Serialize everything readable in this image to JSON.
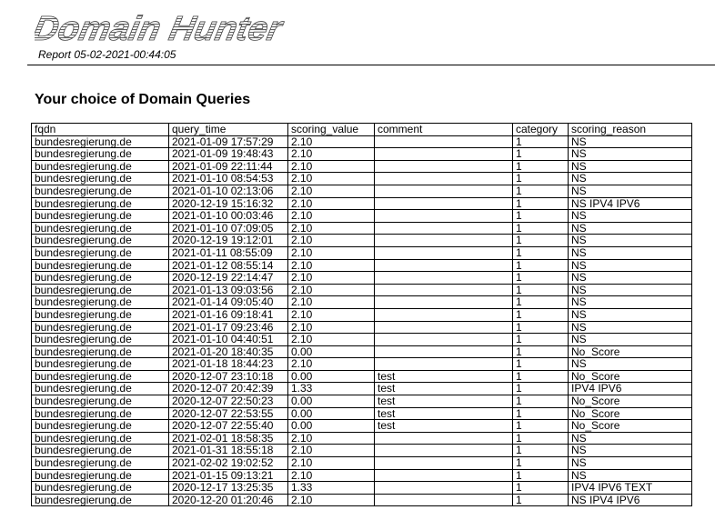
{
  "header": {
    "logo_text": "Domain Hunter",
    "report_label": "Report 05-02-2021-00:44:05"
  },
  "section": {
    "title": "Your choice of Domain Queries"
  },
  "table": {
    "columns": [
      "fqdn",
      "query_time",
      "scoring_value",
      "comment",
      "category",
      "scoring_reason"
    ],
    "rows": [
      [
        "bundesregierung.de",
        "2021-01-09 17:57:29",
        "2.10",
        "",
        "1",
        "NS"
      ],
      [
        "bundesregierung.de",
        "2021-01-09 19:48:43",
        "2.10",
        "",
        "1",
        "NS"
      ],
      [
        "bundesregierung.de",
        "2021-01-09 22:11:44",
        "2.10",
        "",
        "1",
        "NS"
      ],
      [
        "bundesregierung.de",
        "2021-01-10 08:54:53",
        "2.10",
        "",
        "1",
        "NS"
      ],
      [
        "bundesregierung.de",
        "2021-01-10 02:13:06",
        "2.10",
        "",
        "1",
        "NS"
      ],
      [
        "bundesregierung.de",
        "2020-12-19 15:16:32",
        "2.10",
        "",
        "1",
        "NS IPV4 IPV6"
      ],
      [
        "bundesregierung.de",
        "2021-01-10 00:03:46",
        "2.10",
        "",
        "1",
        "NS"
      ],
      [
        "bundesregierung.de",
        "2021-01-10 07:09:05",
        "2.10",
        "",
        "1",
        "NS"
      ],
      [
        "bundesregierung.de",
        "2020-12-19 19:12:01",
        "2.10",
        "",
        "1",
        "NS"
      ],
      [
        "bundesregierung.de",
        "2021-01-11 08:55:09",
        "2.10",
        "",
        "1",
        "NS"
      ],
      [
        "bundesregierung.de",
        "2021-01-12 08:55:14",
        "2.10",
        "",
        "1",
        "NS"
      ],
      [
        "bundesregierung.de",
        "2020-12-19 22:14:47",
        "2.10",
        "",
        "1",
        "NS"
      ],
      [
        "bundesregierung.de",
        "2021-01-13 09:03:56",
        "2.10",
        "",
        "1",
        "NS"
      ],
      [
        "bundesregierung.de",
        "2021-01-14 09:05:40",
        "2.10",
        "",
        "1",
        "NS"
      ],
      [
        "bundesregierung.de",
        "2021-01-16 09:18:41",
        "2.10",
        "",
        "1",
        "NS"
      ],
      [
        "bundesregierung.de",
        "2021-01-17 09:23:46",
        "2.10",
        "",
        "1",
        "NS"
      ],
      [
        "bundesregierung.de",
        "2021-01-10 04:40:51",
        "2.10",
        "",
        "1",
        "NS"
      ],
      [
        "bundesregierung.de",
        "2021-01-20 18:40:35",
        "0.00",
        "",
        "1",
        "No_Score"
      ],
      [
        "bundesregierung.de",
        "2021-01-18 18:44:23",
        "2.10",
        "",
        "1",
        "NS"
      ],
      [
        "bundesregierung.de",
        "2020-12-07 23:10:18",
        "0.00",
        "test",
        "1",
        "No_Score"
      ],
      [
        "bundesregierung.de",
        "2020-12-07 20:42:39",
        "1.33",
        "test",
        "1",
        "IPV4 IPV6"
      ],
      [
        "bundesregierung.de",
        "2020-12-07 22:50:23",
        "0.00",
        "test",
        "1",
        "No_Score"
      ],
      [
        "bundesregierung.de",
        "2020-12-07 22:53:55",
        "0.00",
        "test",
        "1",
        "No_Score"
      ],
      [
        "bundesregierung.de",
        "2020-12-07 22:55:40",
        "0.00",
        "test",
        "1",
        "No_Score"
      ],
      [
        "bundesregierung.de",
        "2021-02-01 18:58:35",
        "2.10",
        "",
        "1",
        "NS"
      ],
      [
        "bundesregierung.de",
        "2021-01-31 18:55:18",
        "2.10",
        "",
        "1",
        "NS"
      ],
      [
        "bundesregierung.de",
        "2021-02-02 19:02:52",
        "2.10",
        "",
        "1",
        "NS"
      ],
      [
        "bundesregierung.de",
        "2021-01-15 09:13:21",
        "2.10",
        "",
        "1",
        "NS"
      ],
      [
        "bundesregierung.de",
        "2020-12-17 13:25:35",
        "1.33",
        "",
        "1",
        "IPV4 IPV6 TEXT"
      ],
      [
        "bundesregierung.de",
        "2020-12-20 01:20:46",
        "2.10",
        "",
        "1",
        "NS IPV4 IPV6"
      ]
    ]
  }
}
